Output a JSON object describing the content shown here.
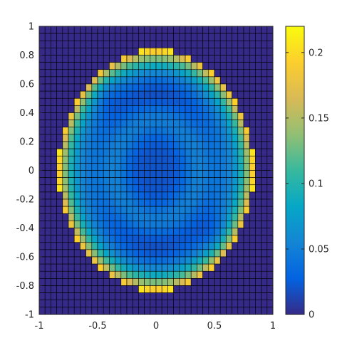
{
  "chart_data": {
    "type": "heatmap",
    "title": "",
    "xlabel": "",
    "ylabel": "",
    "grid_size": 40,
    "xlim": [
      -1,
      1
    ],
    "ylim": [
      -1,
      1
    ],
    "x_ticks": [
      "-1",
      "-0.5",
      "0",
      "0.5",
      "1"
    ],
    "y_ticks": [
      "1",
      "0.8",
      "0.6",
      "0.4",
      "0.2",
      "0",
      "-0.2",
      "-0.4",
      "-0.6",
      "-0.8",
      "-1"
    ],
    "colorbar": {
      "range": [
        0,
        0.22
      ],
      "ticks": [
        "0.2",
        "0.15",
        "0.1",
        "0.05",
        "0"
      ],
      "colormap": "parula"
    },
    "field_description_values": {
      "disk_radius": 0.84,
      "outside_value": 0.0,
      "center_value": 0.02,
      "ring_min_value": 0.05,
      "rim_value": 0.215
    }
  },
  "colors": {
    "cell_edge": "#000000",
    "background": "#ffffff",
    "axis": "#262626"
  }
}
